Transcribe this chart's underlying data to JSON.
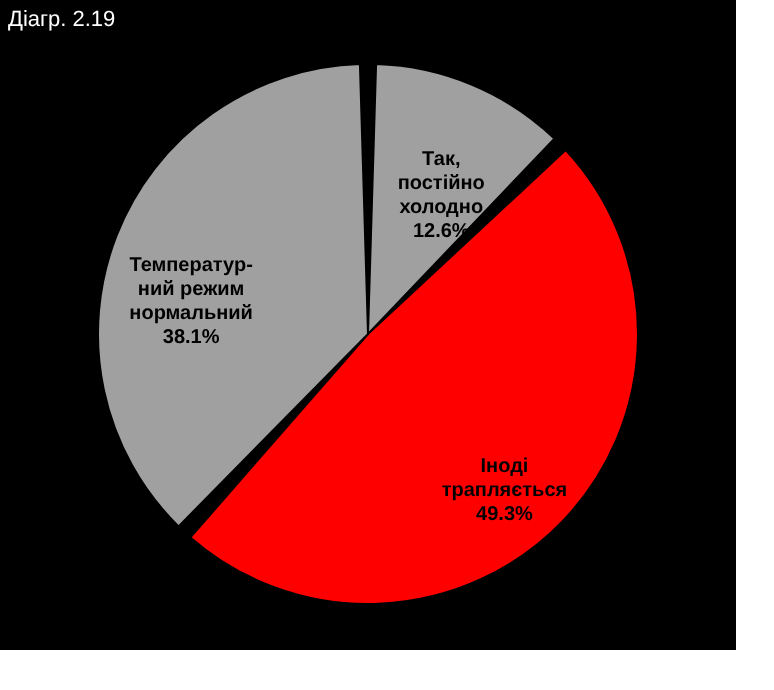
{
  "chart_data": {
    "type": "pie",
    "title": "Діагр. 2.19",
    "categories": [
      "Так,\nпостійно\nхолодно",
      "Іноді\nтрапляється",
      "Температур-\nний режим\nнормальний"
    ],
    "values": [
      12.6,
      49.3,
      38.1
    ],
    "colors": [
      "#a0a0a0",
      "#ff0000",
      "#a0a0a0"
    ],
    "value_labels": [
      "12.6%",
      "49.3%",
      "38.1%"
    ]
  }
}
